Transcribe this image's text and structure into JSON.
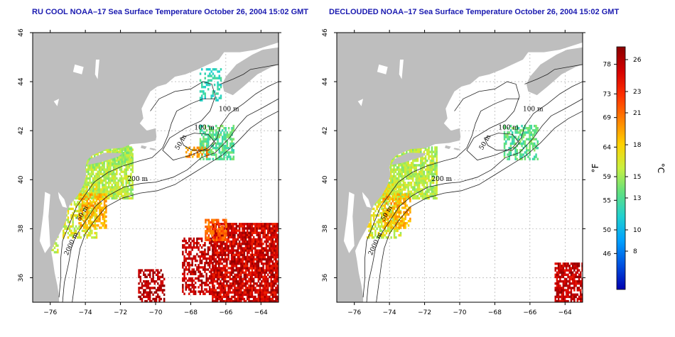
{
  "panels": [
    {
      "id": "left",
      "title": "RU COOL NOAA–17 Sea Surface Temperature October 26, 2004 15:02 GMT",
      "kind": "raw"
    },
    {
      "id": "right",
      "title": "DECLOUDED NOAA–17 Sea Surface Temperature October 26, 2004 15:02 GMT",
      "kind": "declouded"
    }
  ],
  "map": {
    "lon_ticks": [
      -76,
      -74,
      -72,
      -70,
      -68,
      -66,
      -64
    ],
    "lat_ticks": [
      36,
      38,
      40,
      42,
      44,
      46
    ],
    "lon_range": [
      -77,
      -63
    ],
    "lat_range": [
      35,
      46
    ],
    "land_color": "#bebebe",
    "ocean_color": "#ffffff",
    "contour_labels": [
      "100 m",
      "100 m",
      "50 m",
      "200 m",
      "50 m",
      "2000 m"
    ]
  },
  "colorbar": {
    "fahrenheit_ticks": [
      "78",
      "73",
      "69",
      "64",
      "59",
      "55",
      "50",
      "46"
    ],
    "celsius_ticks": [
      "26",
      "23",
      "21",
      "18",
      "15",
      "13",
      "10",
      "8"
    ],
    "fahrenheit_unit": "°F",
    "celsius_unit": "°C",
    "colors": [
      "#8b0000",
      "#d40000",
      "#ff3000",
      "#ff8000",
      "#ffd000",
      "#c8f040",
      "#60e080",
      "#20d0d0",
      "#00a0ff",
      "#0050e0",
      "#0000b0"
    ]
  }
}
